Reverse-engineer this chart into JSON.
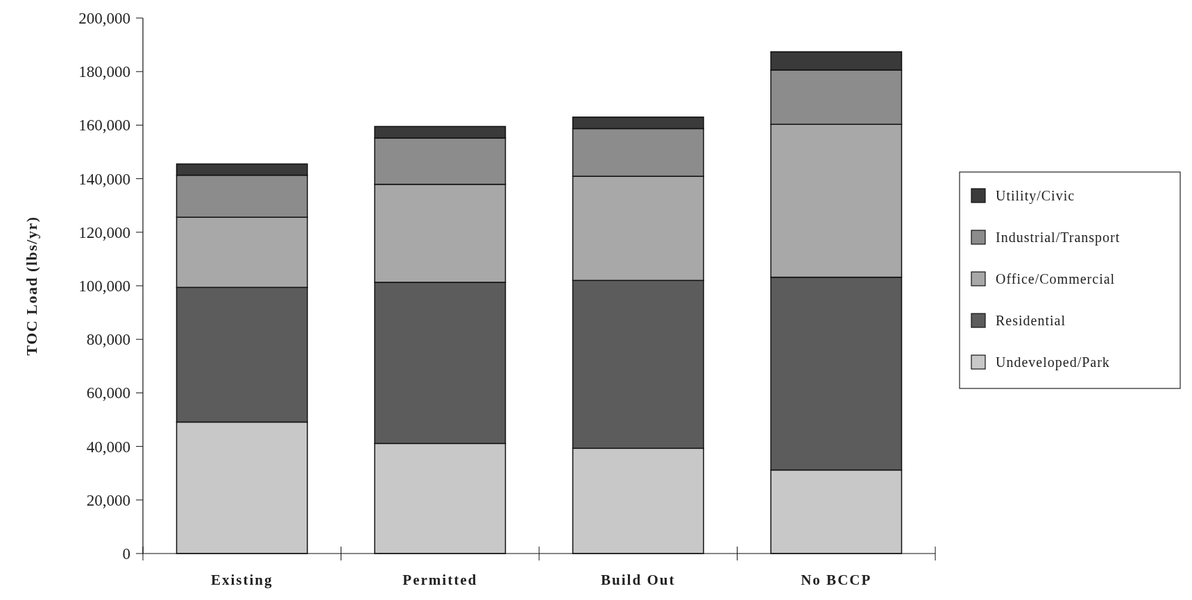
{
  "chart_data": {
    "type": "bar",
    "stacked": true,
    "ylabel": "TOC Load (lbs/yr)",
    "categories": [
      "Existing",
      "Permitted",
      "Build Out",
      "No BCCP"
    ],
    "series": [
      {
        "name": "Undeveloped/Park",
        "color": "#c8c8c8",
        "values": [
          49100,
          41100,
          39300,
          31200
        ]
      },
      {
        "name": "Residential",
        "color": "#5c5c5c",
        "values": [
          50300,
          60200,
          62700,
          72000
        ]
      },
      {
        "name": "Office/Commercial",
        "color": "#a8a8a8",
        "values": [
          26200,
          36600,
          38900,
          57100
        ]
      },
      {
        "name": "Industrial/Transport",
        "color": "#8c8c8c",
        "values": [
          15700,
          17300,
          17800,
          20300
        ]
      },
      {
        "name": "Utility/Civic",
        "color": "#3a3a3a",
        "values": [
          4200,
          4300,
          4300,
          6800
        ]
      }
    ],
    "ylim": [
      0,
      200000
    ],
    "yticks": [
      {
        "value": 0,
        "label": "0"
      },
      {
        "value": 20000,
        "label": "20,000"
      },
      {
        "value": 40000,
        "label": "40,000"
      },
      {
        "value": 60000,
        "label": "60,000"
      },
      {
        "value": 80000,
        "label": "80,000"
      },
      {
        "value": 100000,
        "label": "100,000"
      },
      {
        "value": 120000,
        "label": "120,000"
      },
      {
        "value": 140000,
        "label": "140,000"
      },
      {
        "value": 160000,
        "label": "160,000"
      },
      {
        "value": 180000,
        "label": "180,000"
      },
      {
        "value": 200000,
        "label": "200,000"
      }
    ],
    "legend": "right",
    "grid": false
  }
}
